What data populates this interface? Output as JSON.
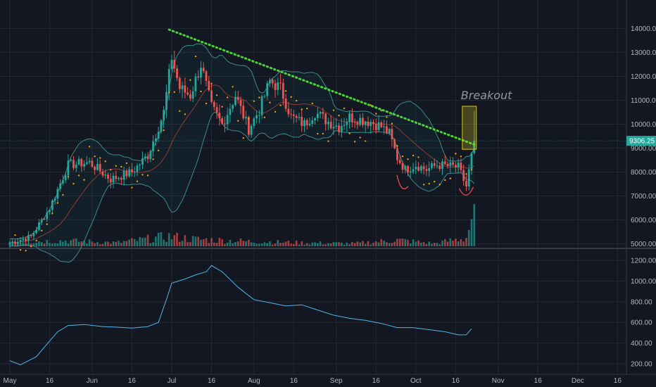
{
  "chart_data": [
    {
      "type": "candlestick",
      "title": "",
      "x_ticks": [
        "May",
        "16",
        "Jun",
        "16",
        "Jul",
        "16",
        "Aug",
        "16",
        "Sep",
        "16",
        "Oct",
        "16",
        "Nov",
        "16",
        "Dec",
        "16"
      ],
      "x_tick_days": [
        0,
        15,
        31,
        46,
        61,
        76,
        92,
        107,
        123,
        138,
        153,
        168,
        184,
        199,
        214,
        229
      ],
      "y_ticks": [
        "14000.00",
        "13000.00",
        "12000.00",
        "11000.00",
        "10000.00",
        "9000.00",
        "8000.00",
        "7000.00",
        "6000.00",
        "5000.00"
      ],
      "y_tick_values": [
        14000,
        13000,
        12000,
        11000,
        10000,
        9000,
        8000,
        7000,
        6000,
        5000
      ],
      "ylim": [
        4900,
        14600
      ],
      "last_price": "9306.25",
      "annotation": "Breakout",
      "colors": {
        "up": "#26a69a",
        "down": "#ef5350",
        "trend": "#4cd137",
        "sar": "#f39c12",
        "band": "#3b8c8c",
        "box": "#d4c21f",
        "cup": "#e04848"
      },
      "close_keypoints": [
        [
          0,
          5050
        ],
        [
          8,
          5300
        ],
        [
          15,
          6500
        ],
        [
          22,
          8300
        ],
        [
          30,
          8400
        ],
        [
          38,
          7700
        ],
        [
          46,
          8000
        ],
        [
          52,
          8700
        ],
        [
          58,
          10500
        ],
        [
          61,
          12800
        ],
        [
          64,
          11500
        ],
        [
          68,
          11200
        ],
        [
          72,
          12500
        ],
        [
          76,
          10700
        ],
        [
          80,
          10000
        ],
        [
          85,
          11200
        ],
        [
          90,
          9800
        ],
        [
          94,
          10600
        ],
        [
          98,
          11800
        ],
        [
          102,
          11500
        ],
        [
          106,
          10300
        ],
        [
          111,
          10000
        ],
        [
          115,
          10500
        ],
        [
          120,
          10100
        ],
        [
          124,
          9900
        ],
        [
          128,
          10300
        ],
        [
          132,
          10200
        ],
        [
          136,
          10100
        ],
        [
          140,
          9900
        ],
        [
          143,
          9600
        ],
        [
          146,
          8600
        ],
        [
          149,
          8100
        ],
        [
          153,
          8300
        ],
        [
          157,
          8100
        ],
        [
          161,
          8300
        ],
        [
          165,
          8250
        ],
        [
          169,
          8200
        ],
        [
          172,
          7400
        ],
        [
          175,
          9306
        ]
      ],
      "volume_keypoints": [
        [
          0,
          6
        ],
        [
          20,
          8
        ],
        [
          40,
          5
        ],
        [
          60,
          14
        ],
        [
          70,
          10
        ],
        [
          90,
          7
        ],
        [
          110,
          5
        ],
        [
          130,
          4
        ],
        [
          146,
          9
        ],
        [
          160,
          4
        ],
        [
          172,
          12
        ],
        [
          174,
          40
        ]
      ],
      "trend_line": {
        "start": {
          "day": 60,
          "price": 13950
        },
        "end": {
          "day": 175,
          "price": 9150
        }
      },
      "breakout_box": {
        "day_start": 170.5,
        "day_end": 175.8,
        "price_low": 8950,
        "price_high": 10750
      }
    },
    {
      "type": "line",
      "series": [
        {
          "values_by_day": [
            [
              0,
              230
            ],
            [
              4,
              190
            ],
            [
              10,
              270
            ],
            [
              15,
              420
            ],
            [
              18,
              510
            ],
            [
              22,
              570
            ],
            [
              28,
              580
            ],
            [
              35,
              560
            ],
            [
              40,
              555
            ],
            [
              46,
              545
            ],
            [
              52,
              560
            ],
            [
              56,
              600
            ],
            [
              59,
              820
            ],
            [
              61,
              980
            ],
            [
              66,
              1020
            ],
            [
              70,
              1060
            ],
            [
              74,
              1090
            ],
            [
              76,
              1150
            ],
            [
              80,
              1090
            ],
            [
              86,
              940
            ],
            [
              92,
              820
            ],
            [
              98,
              790
            ],
            [
              104,
              760
            ],
            [
              110,
              770
            ],
            [
              116,
              720
            ],
            [
              122,
              670
            ],
            [
              128,
              640
            ],
            [
              134,
              620
            ],
            [
              140,
              590
            ],
            [
              146,
              550
            ],
            [
              152,
              550
            ],
            [
              158,
              530
            ],
            [
              164,
              510
            ],
            [
              169,
              480
            ],
            [
              172,
              480
            ],
            [
              174,
              540
            ]
          ]
        }
      ],
      "y_ticks": [
        "1200.00",
        "1000.00",
        "800.00",
        "600.00",
        "400.00",
        "200.00"
      ],
      "y_tick_values": [
        1200,
        1000,
        800,
        600,
        400,
        200
      ],
      "ylim": [
        180,
        1200
      ]
    }
  ]
}
